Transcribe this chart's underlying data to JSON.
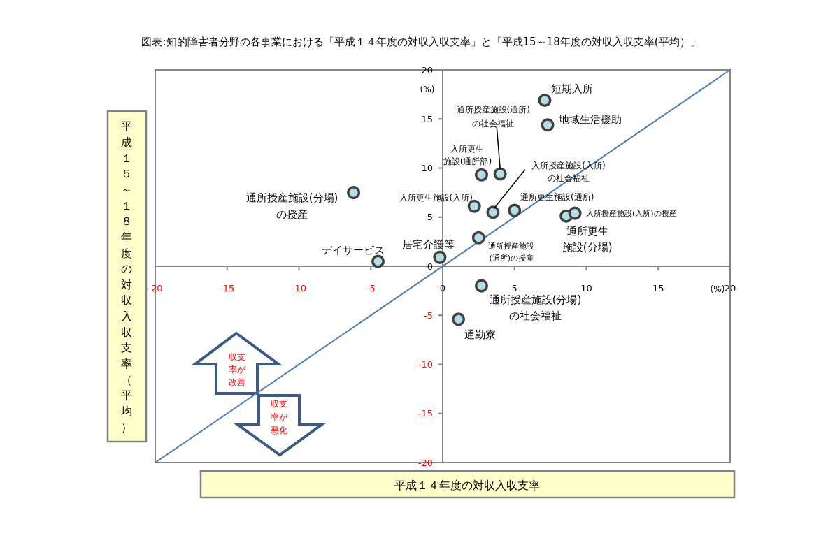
{
  "chart_data": {
    "type": "scatter",
    "title": "図表:知的障害者分野の各事業における「平成１４年度の対収入収支率」と「平成15～18年度の対収入収支率(平均）」",
    "xlabel": "平成１４年度の対収入収支率",
    "ylabel": "平成１５～１８年度の対収入収支率（平均）",
    "xlim": [
      -20,
      20
    ],
    "ylim": [
      -20,
      20
    ],
    "xticks": [
      -20,
      -15,
      -10,
      -5,
      0,
      5,
      10,
      15,
      20
    ],
    "yticks": [
      -20,
      -15,
      -10,
      -5,
      0,
      5,
      10,
      15,
      20
    ],
    "marker": "circle",
    "series": [
      {
        "type": "line",
        "color": "#4a7ebb",
        "marker": "none",
        "x": [
          -20,
          20
        ],
        "values": [
          -20,
          20
        ]
      },
      {
        "color": "#b4dde6",
        "x": [
          7.1,
          7.3,
          2.7,
          4.0,
          -6.2,
          -4.5,
          -0.2,
          2.2,
          3.5,
          5.0,
          2.5,
          8.6,
          9.2,
          2.7,
          1.1
        ],
        "values": [
          16.9,
          14.4,
          9.3,
          9.4,
          7.5,
          0.5,
          0.9,
          6.1,
          5.5,
          5.7,
          2.9,
          5.1,
          5.4,
          -2.0,
          -5.4
        ]
      }
    ],
    "annotations": [
      {
        "text": "短期入所",
        "x": 7.1,
        "y": 16.9
      },
      {
        "text": "地域生活援助",
        "x": 7.3,
        "y": 14.4
      },
      {
        "text": "入所更生施設(通所部)",
        "x": 2.7,
        "y": 9.3
      },
      {
        "text": "通所授産施設(通所)の社会福祉",
        "x": 4.0,
        "y": 9.4
      },
      {
        "text": "通所授産施設(分場)の授産",
        "x": -6.2,
        "y": 7.5
      },
      {
        "text": "デイサービス",
        "x": -4.5,
        "y": 0.5
      },
      {
        "text": "居宅介護等",
        "x": -0.2,
        "y": 0.9
      },
      {
        "text": "入所更生施設(入所)",
        "x": 2.2,
        "y": 6.1
      },
      {
        "text": "入所授産施設(入所)の社会福祉",
        "x": 3.5,
        "y": 5.5
      },
      {
        "text": "通所更生施設(通所)",
        "x": 5.0,
        "y": 5.7
      },
      {
        "text": "通所授産施設(通所)の授産",
        "x": 2.5,
        "y": 2.9
      },
      {
        "text": "通所更生施設(分場)",
        "x": 8.6,
        "y": 5.1
      },
      {
        "text": "入所授産施設(入所)の授産",
        "x": 9.2,
        "y": 5.4
      },
      {
        "text": "通所授産施設(分場)の社会福祉",
        "x": 2.7,
        "y": -2.0
      },
      {
        "text": "通勤寮",
        "x": 1.1,
        "y": -5.4
      },
      "(%)",
      "(%)",
      "収支率が改善",
      "収支率が悪化"
    ]
  }
}
